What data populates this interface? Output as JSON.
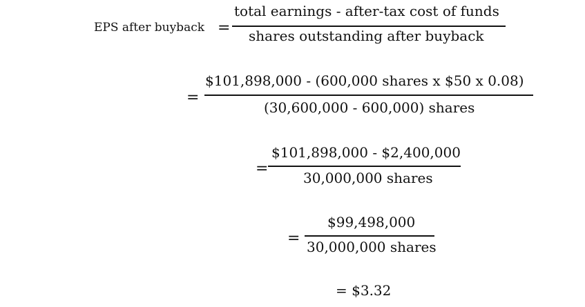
{
  "formula": {
    "lhs": "EPS after buyback",
    "equals": "=",
    "step1": {
      "numerator": "total earnings - after-tax cost of funds",
      "denominator": "shares outstanding after buyback"
    },
    "step2": {
      "numerator": "$101,898,000  - (600,000 shares x  $50 x  0.08)",
      "denominator": "(30,600,000 - 600,000) shares"
    },
    "step3": {
      "numerator": "$101,898,000 -  $2,400,000",
      "denominator": "30,000,000 shares"
    },
    "step4": {
      "numerator": "$99,498,000",
      "denominator": "30,000,000 shares"
    },
    "result": "= $3.32"
  }
}
